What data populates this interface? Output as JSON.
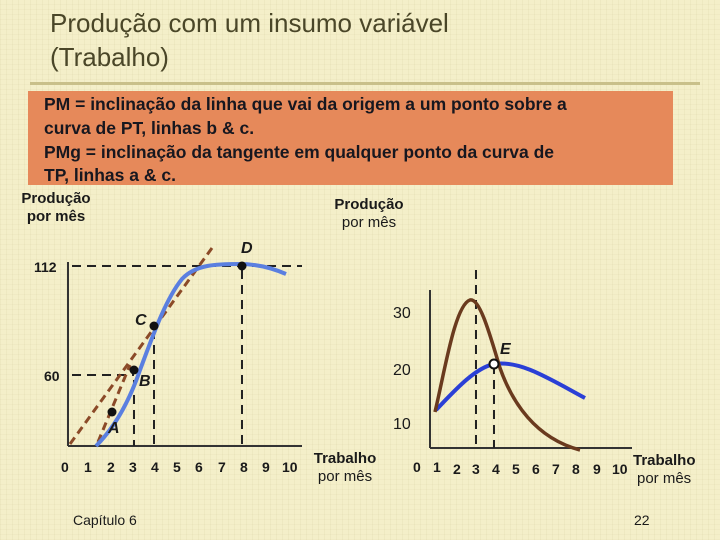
{
  "slide": {
    "title_line1": "Produção com um insumo variável",
    "title_line2": "(Trabalho)",
    "definition": {
      "line1": "PM = inclinação da linha que vai da origem a um ponto sobre a",
      "line2": "curva de PT, linhas b & c.",
      "line3": "PMg = inclinação da tangente em qualquer ponto da curva de",
      "line4": "TP, linhas a & c."
    },
    "footer": {
      "chapter": "Capítulo 6",
      "page": "22"
    }
  },
  "left_panel": {
    "y_label_line1": "Produção",
    "y_label_line2": "por mês",
    "y_ticks": [
      "112",
      "60"
    ],
    "x_ticks": [
      "0",
      "1",
      "2",
      "3",
      "4",
      "5",
      "6",
      "7",
      "8",
      "9",
      "10"
    ],
    "x_label_line1": "Trabalho",
    "x_label_line2": "por mês",
    "points": {
      "A": "A",
      "B": "B",
      "C": "C",
      "D": "D"
    }
  },
  "right_panel": {
    "y_label_line1": "Produção",
    "y_label_line2": "por mês",
    "y_ticks": [
      "30",
      "20",
      "10"
    ],
    "x_ticks": [
      "0",
      "1",
      "2",
      "3",
      "4",
      "5",
      "6",
      "7",
      "8",
      "9",
      "10"
    ],
    "x_label_line1": "Trabalho",
    "x_label_line2": "por mês",
    "points": {
      "E": "E"
    }
  },
  "colors": {
    "total_product_curve": "#5a7fe0",
    "average_product_curve": "#2a3fd6",
    "marginal_product_curve": "#6a3a1e",
    "tangent_lines": "#8b4a28",
    "definition_box": "#e6895a"
  }
}
